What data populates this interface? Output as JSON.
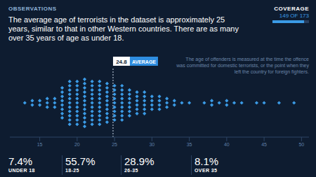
{
  "header": {
    "kicker": "OBSERVATIONS",
    "text": "The average age of terrorists in the dataset is approximately 25 years, similar to that in other Western countries. There are as many over 35 years of age as under 18."
  },
  "coverage": {
    "label": "COVERAGE",
    "value": 149,
    "total": 173,
    "value_label": "149 OF 173"
  },
  "note": "The age of offenders is measured at the time the offence was committed for domestic terrorists, or the point when they left the country for foreign fighters.",
  "chart_data": {
    "type": "scatter",
    "marker": "diamond",
    "color": "#3b9be6",
    "xlim": [
      11,
      51
    ],
    "xticks": [
      15,
      20,
      25,
      30,
      35,
      40,
      45,
      50
    ],
    "average": {
      "value": 24.8,
      "label": "AVERAGE"
    },
    "values": [
      13,
      14,
      14,
      15,
      15,
      16,
      16,
      16,
      17,
      17,
      17,
      18,
      18,
      18,
      18,
      18,
      18,
      18,
      18,
      19,
      19,
      19,
      19,
      19,
      19,
      19,
      19,
      19,
      19,
      19,
      20,
      20,
      20,
      20,
      20,
      20,
      20,
      20,
      20,
      20,
      20,
      21,
      21,
      21,
      21,
      21,
      21,
      21,
      21,
      21,
      21,
      21,
      21,
      22,
      22,
      22,
      22,
      22,
      22,
      22,
      22,
      22,
      22,
      22,
      23,
      23,
      23,
      23,
      23,
      23,
      23,
      23,
      23,
      23,
      23,
      24,
      24,
      24,
      24,
      24,
      24,
      24,
      24,
      24,
      24,
      25,
      25,
      25,
      25,
      25,
      25,
      25,
      25,
      25,
      26,
      26,
      26,
      26,
      26,
      26,
      26,
      26,
      26,
      27,
      27,
      27,
      27,
      27,
      27,
      27,
      28,
      28,
      28,
      28,
      28,
      28,
      29,
      29,
      29,
      29,
      29,
      29,
      30,
      30,
      30,
      30,
      31,
      31,
      31,
      31,
      32,
      32,
      32,
      33,
      33,
      34,
      35,
      37,
      38,
      38,
      39,
      40,
      40,
      41,
      42,
      44,
      45,
      47,
      49
    ]
  },
  "stats": [
    {
      "text": "7.4%",
      "label": "UNDER 18"
    },
    {
      "text": "55.7%",
      "label": "18-25"
    },
    {
      "text": "28.9%",
      "label": "26-35"
    },
    {
      "text": "8.1%",
      "label": "OVER 35"
    }
  ]
}
